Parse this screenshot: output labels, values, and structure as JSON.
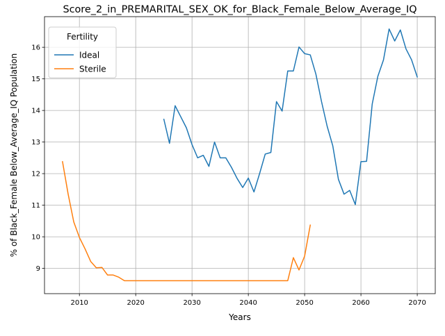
{
  "chart_data": {
    "type": "line",
    "title": "Score_2_in_PREMARITAL_SEX_OK_for_Black_Female_Below_Average_IQ",
    "xlabel": "Years",
    "ylabel": "% of Black_Female Below_Average_IQ Population",
    "xlim": [
      2003.8,
      2073.2
    ],
    "ylim": [
      8.2,
      16.97
    ],
    "xticks": [
      2010,
      2020,
      2030,
      2040,
      2050,
      2060,
      2070
    ],
    "yticks": [
      9,
      10,
      11,
      12,
      13,
      14,
      15,
      16
    ],
    "grid": true,
    "legend": {
      "title": "Fertility",
      "placement": "top-left"
    },
    "series": [
      {
        "name": "Ideal",
        "color": "#1f77b4",
        "x": [
          2025,
          2026,
          2027,
          2028,
          2029,
          2030,
          2031,
          2032,
          2033,
          2034,
          2035,
          2036,
          2037,
          2038,
          2039,
          2040,
          2041,
          2042,
          2043,
          2044,
          2045,
          2046,
          2047,
          2048,
          2049,
          2050,
          2051,
          2052,
          2053,
          2054,
          2055,
          2056,
          2057,
          2058,
          2059,
          2060,
          2061,
          2062,
          2063,
          2064,
          2065,
          2066,
          2067,
          2068,
          2069,
          2070
        ],
        "y": [
          13.72,
          12.96,
          14.15,
          13.8,
          13.45,
          12.92,
          12.5,
          12.58,
          12.23,
          13.0,
          12.5,
          12.5,
          12.2,
          11.85,
          11.56,
          11.86,
          11.42,
          12.0,
          12.62,
          12.67,
          14.28,
          13.98,
          15.25,
          15.25,
          16.01,
          15.8,
          15.76,
          15.15,
          14.28,
          13.5,
          12.88,
          11.82,
          11.35,
          11.47,
          11.02,
          12.38,
          12.39,
          14.2,
          15.08,
          15.6,
          16.58,
          16.2,
          16.55,
          15.95,
          15.6,
          15.06
        ]
      },
      {
        "name": "Sterile",
        "color": "#ff7f0e",
        "x": [
          2007,
          2008,
          2009,
          2010,
          2011,
          2012,
          2013,
          2014,
          2015,
          2016,
          2017,
          2018,
          2019,
          2020,
          2021,
          2022,
          2023,
          2024,
          2025,
          2026,
          2027,
          2028,
          2029,
          2030,
          2031,
          2032,
          2033,
          2034,
          2035,
          2036,
          2037,
          2038,
          2039,
          2040,
          2041,
          2042,
          2043,
          2044,
          2045,
          2046,
          2047,
          2048,
          2049,
          2050,
          2051
        ],
        "y": [
          12.38,
          11.35,
          10.47,
          9.98,
          9.62,
          9.22,
          9.02,
          9.03,
          8.79,
          8.79,
          8.72,
          8.61,
          8.61,
          8.61,
          8.61,
          8.61,
          8.61,
          8.61,
          8.61,
          8.61,
          8.61,
          8.61,
          8.61,
          8.61,
          8.61,
          8.61,
          8.61,
          8.61,
          8.61,
          8.61,
          8.61,
          8.61,
          8.61,
          8.61,
          8.61,
          8.61,
          8.61,
          8.61,
          8.61,
          8.61,
          8.61,
          9.34,
          8.95,
          9.39,
          10.37
        ]
      }
    ]
  }
}
